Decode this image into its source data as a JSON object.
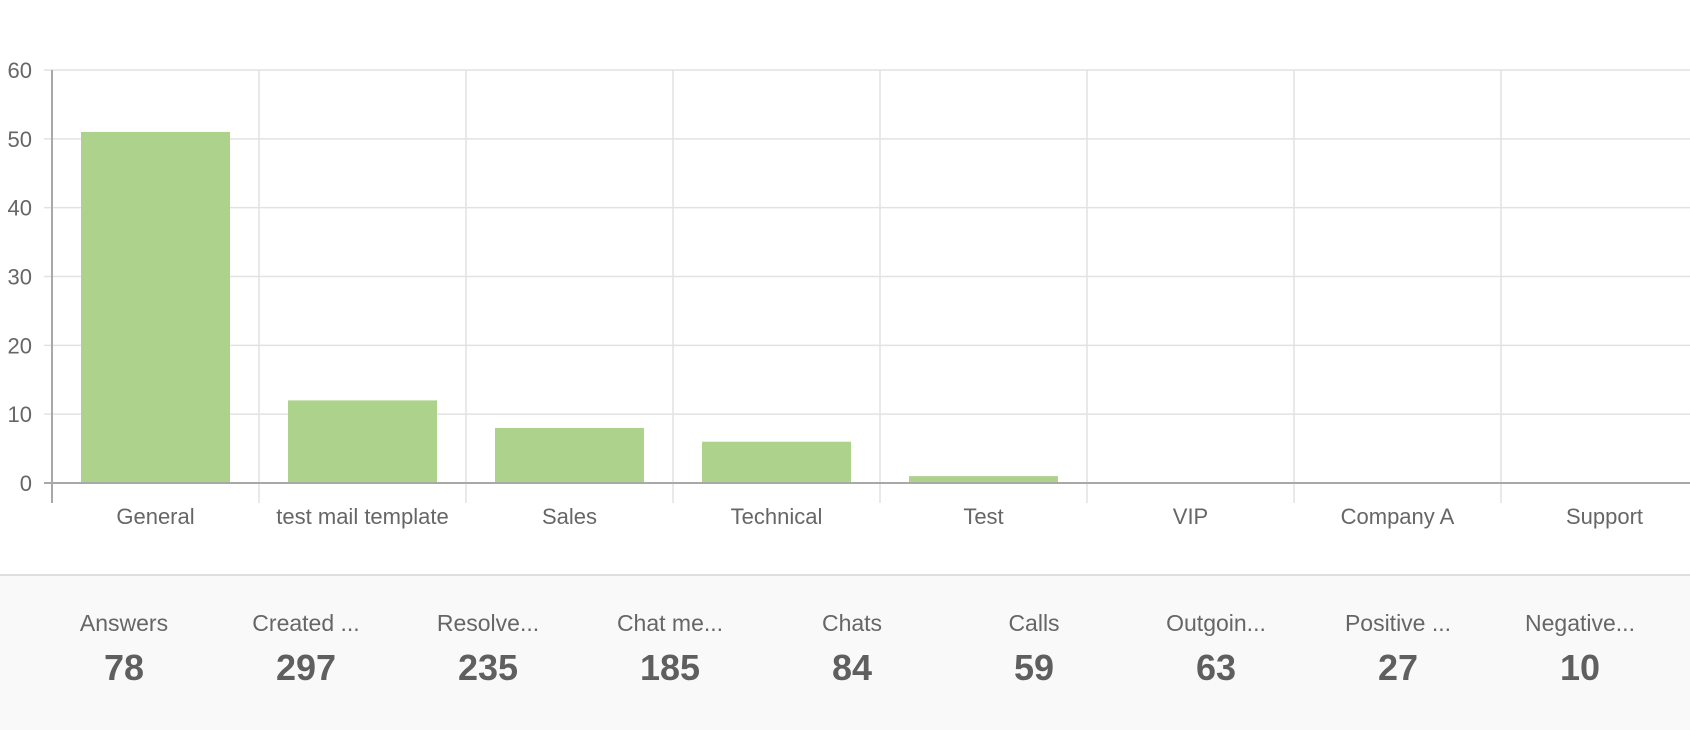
{
  "chart_data": {
    "type": "bar",
    "categories": [
      "General",
      "test mail template",
      "Sales",
      "Technical",
      "Test",
      "VIP",
      "Company A",
      "Support"
    ],
    "values": [
      51,
      12,
      8,
      6,
      1,
      0,
      0,
      0
    ],
    "ylim": [
      0,
      60
    ],
    "yticks": [
      0,
      10,
      20,
      30,
      40,
      50,
      60
    ],
    "grid": true,
    "bar_color": "#acd28c"
  },
  "stats": [
    {
      "label": "Answers",
      "value": "78"
    },
    {
      "label": "Created ...",
      "value": "297"
    },
    {
      "label": "Resolve...",
      "value": "235"
    },
    {
      "label": "Chat me...",
      "value": "185"
    },
    {
      "label": "Chats",
      "value": "84"
    },
    {
      "label": "Calls",
      "value": "59"
    },
    {
      "label": "Outgoin...",
      "value": "63"
    },
    {
      "label": "Positive ...",
      "value": "27"
    },
    {
      "label": "Negative...",
      "value": "10"
    }
  ]
}
